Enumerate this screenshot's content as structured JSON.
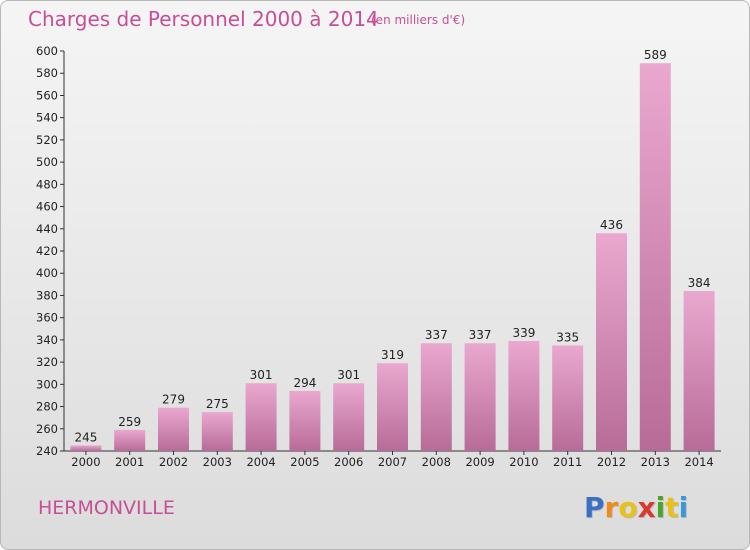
{
  "title": "Charges de Personnel 2000 à 2014",
  "subtitle": "(en milliers d'€)",
  "town": "HERMONVILLE",
  "logo": {
    "letters": [
      "P",
      "r",
      "o",
      "x",
      "i",
      "t",
      "i"
    ],
    "colors": [
      "#3a6fc4",
      "#f08a1c",
      "#e8c21a",
      "#d93a2e",
      "#4aa52e",
      "#e8c21a",
      "#3a9ad9"
    ]
  },
  "colors": {
    "bar_top": "#eaa8cf",
    "bar_bottom": "#b76c97",
    "accent": "#c64f95"
  },
  "chart_data": {
    "type": "bar",
    "categories": [
      "2000",
      "2001",
      "2002",
      "2003",
      "2004",
      "2005",
      "2006",
      "2007",
      "2008",
      "2009",
      "2010",
      "2011",
      "2012",
      "2013",
      "2014"
    ],
    "values": [
      245,
      259,
      279,
      275,
      301,
      294,
      301,
      319,
      337,
      337,
      339,
      335,
      436,
      589,
      384
    ],
    "ylim": [
      240,
      600
    ],
    "yticks": [
      240,
      260,
      280,
      300,
      320,
      340,
      360,
      380,
      400,
      420,
      440,
      460,
      480,
      500,
      520,
      540,
      560,
      580,
      600
    ],
    "grid": false,
    "legend": "none"
  }
}
